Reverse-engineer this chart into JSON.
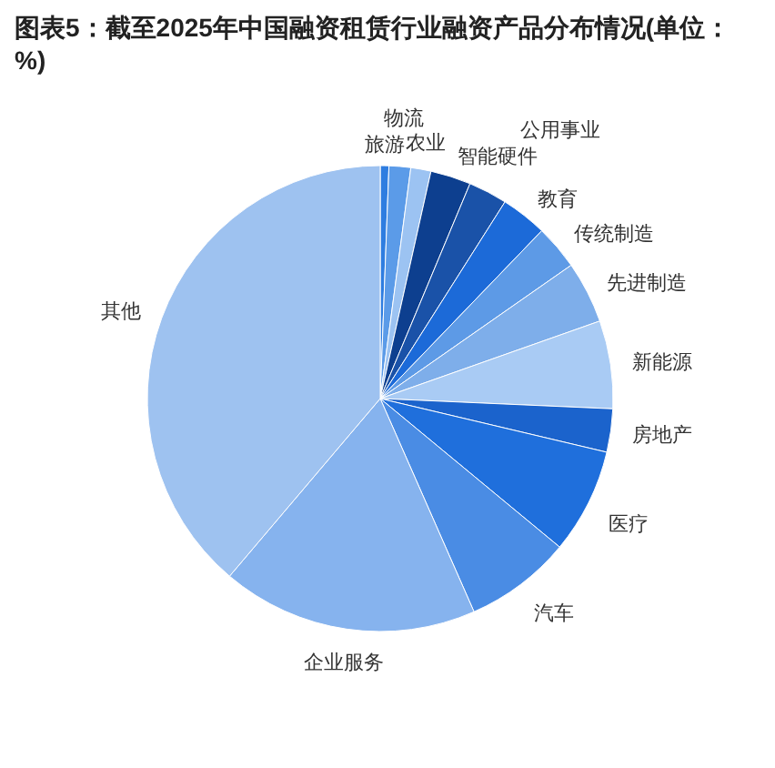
{
  "chart_data": {
    "type": "pie",
    "title": "图表5：截至2025年中国融资租赁行业融资产品分布情况(单位：%)",
    "categories": [
      "旅游",
      "物流",
      "农业",
      "智能硬件",
      "公用事业",
      "教育",
      "传统制造",
      "先进制造",
      "新能源",
      "房地产",
      "医疗",
      "汽车",
      "企业服务",
      "其他"
    ],
    "values": [
      0.6,
      1.5,
      1.4,
      2.8,
      2.7,
      3.2,
      3.1,
      4.3,
      6.1,
      3.0,
      7.3,
      7.4,
      17.8,
      38.8
    ],
    "colors": [
      "#2e7de0",
      "#5b9be8",
      "#9cc3f2",
      "#0d3f8f",
      "#1a52a8",
      "#1c6ad8",
      "#5d9ae6",
      "#7eaeea",
      "#a9cbf4",
      "#1b63cc",
      "#1f6fdc",
      "#4a8ce4",
      "#86b3ee",
      "#9ec2f0"
    ]
  }
}
